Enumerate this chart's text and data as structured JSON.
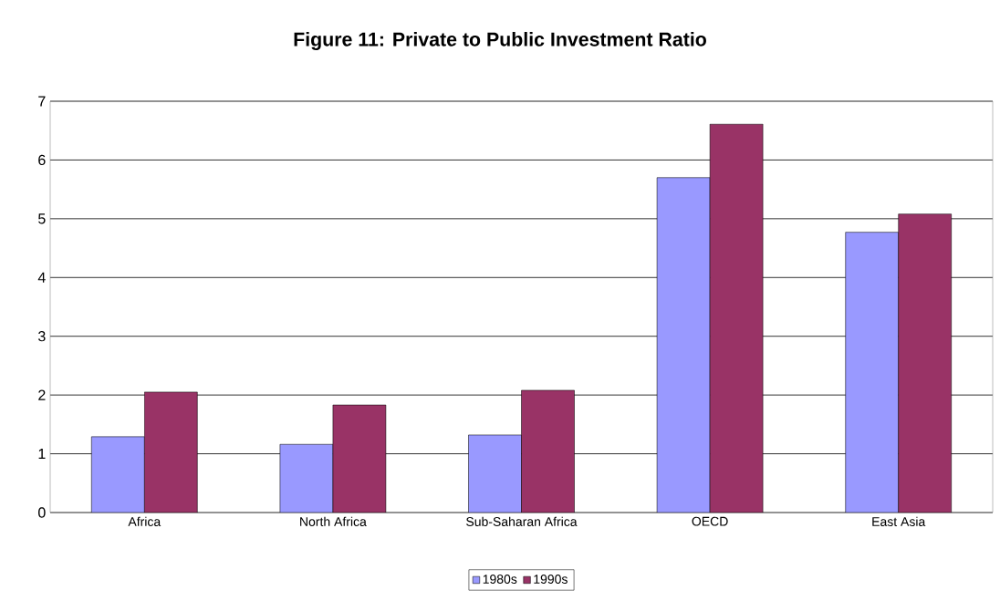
{
  "chart_data": {
    "type": "bar",
    "title": "Figure 11: Private to Public Investment Ratio",
    "categories": [
      "Africa",
      "North Africa",
      "Sub-Saharan Africa",
      "OECD",
      "East Asia"
    ],
    "series": [
      {
        "name": "1980s",
        "color": "#9999ff",
        "values": [
          1.29,
          1.16,
          1.32,
          5.7,
          4.77
        ]
      },
      {
        "name": "1990s",
        "color": "#993366",
        "values": [
          2.05,
          1.83,
          2.08,
          6.61,
          5.08
        ]
      }
    ],
    "ylim": [
      0,
      7
    ],
    "yticks": [
      0,
      1,
      2,
      3,
      4,
      5,
      6,
      7
    ],
    "grid": "y",
    "legend": "bottom"
  }
}
